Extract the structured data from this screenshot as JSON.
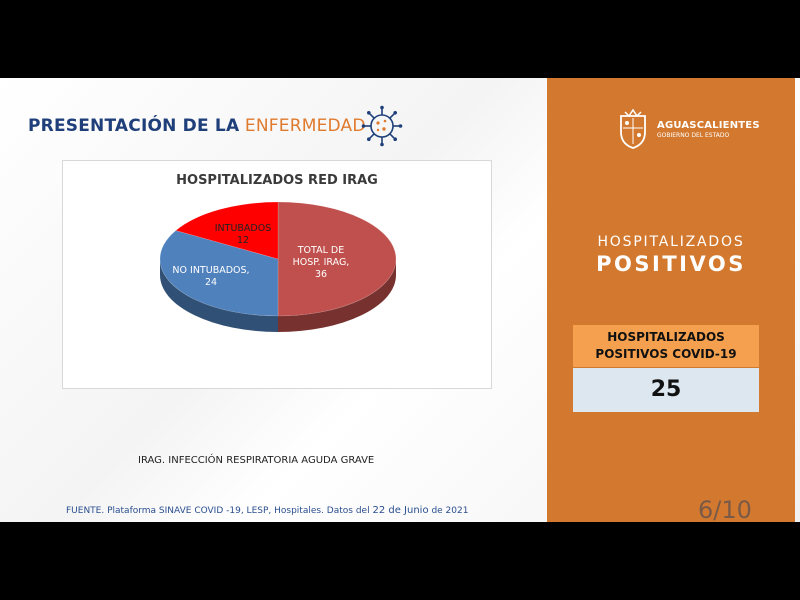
{
  "slide": {
    "title_bold": "PRESENTACIÓN DE LA",
    "title_light": "ENFERMEDAD",
    "virus_icon": "virus-icon",
    "footnote": "IRAG. INFECCIÓN RESPIRATORIA AGUDA GRAVE",
    "source_a": "FUENTE. Plataforma SINAVE COVID -19, LESP, Hospitales. Datos del",
    "source_b": "22 de Junio",
    "source_c": "de 2021",
    "page_number": "6/10"
  },
  "chart_data": {
    "type": "pie",
    "title": "HOSPITALIZADOS RED IRAG",
    "slices": [
      {
        "label": "TOTAL DE HOSP. IRAG,",
        "label_line1": "TOTAL DE",
        "label_line2": "HOSP. IRAG,",
        "value": 36,
        "value_text": "36",
        "color": "#c0504d"
      },
      {
        "label": "NO INTUBADOS,",
        "label_line1": "NO INTUBADOS,",
        "value": 24,
        "value_text": "24",
        "color": "#4f81bd"
      },
      {
        "label": "INTUBADOS",
        "label_line1": "INTUBADOS",
        "value": 12,
        "value_text": "12",
        "color": "#ff0000"
      }
    ]
  },
  "panel": {
    "state_name": "AGUASCALIENTES",
    "state_sub": "GOBIERNO DEL ESTADO",
    "heading_light": "HOSPITALIZADOS",
    "heading_bold": "POSITIVOS",
    "kpi_label_line1": "HOSPITALIZADOS",
    "kpi_label_line2": "POSITIVOS COVID-19",
    "kpi_value": "25",
    "colors": {
      "panel": "#d3792f",
      "kpi_header": "#f4a04e",
      "kpi_value_bg": "#dce7ef"
    }
  }
}
